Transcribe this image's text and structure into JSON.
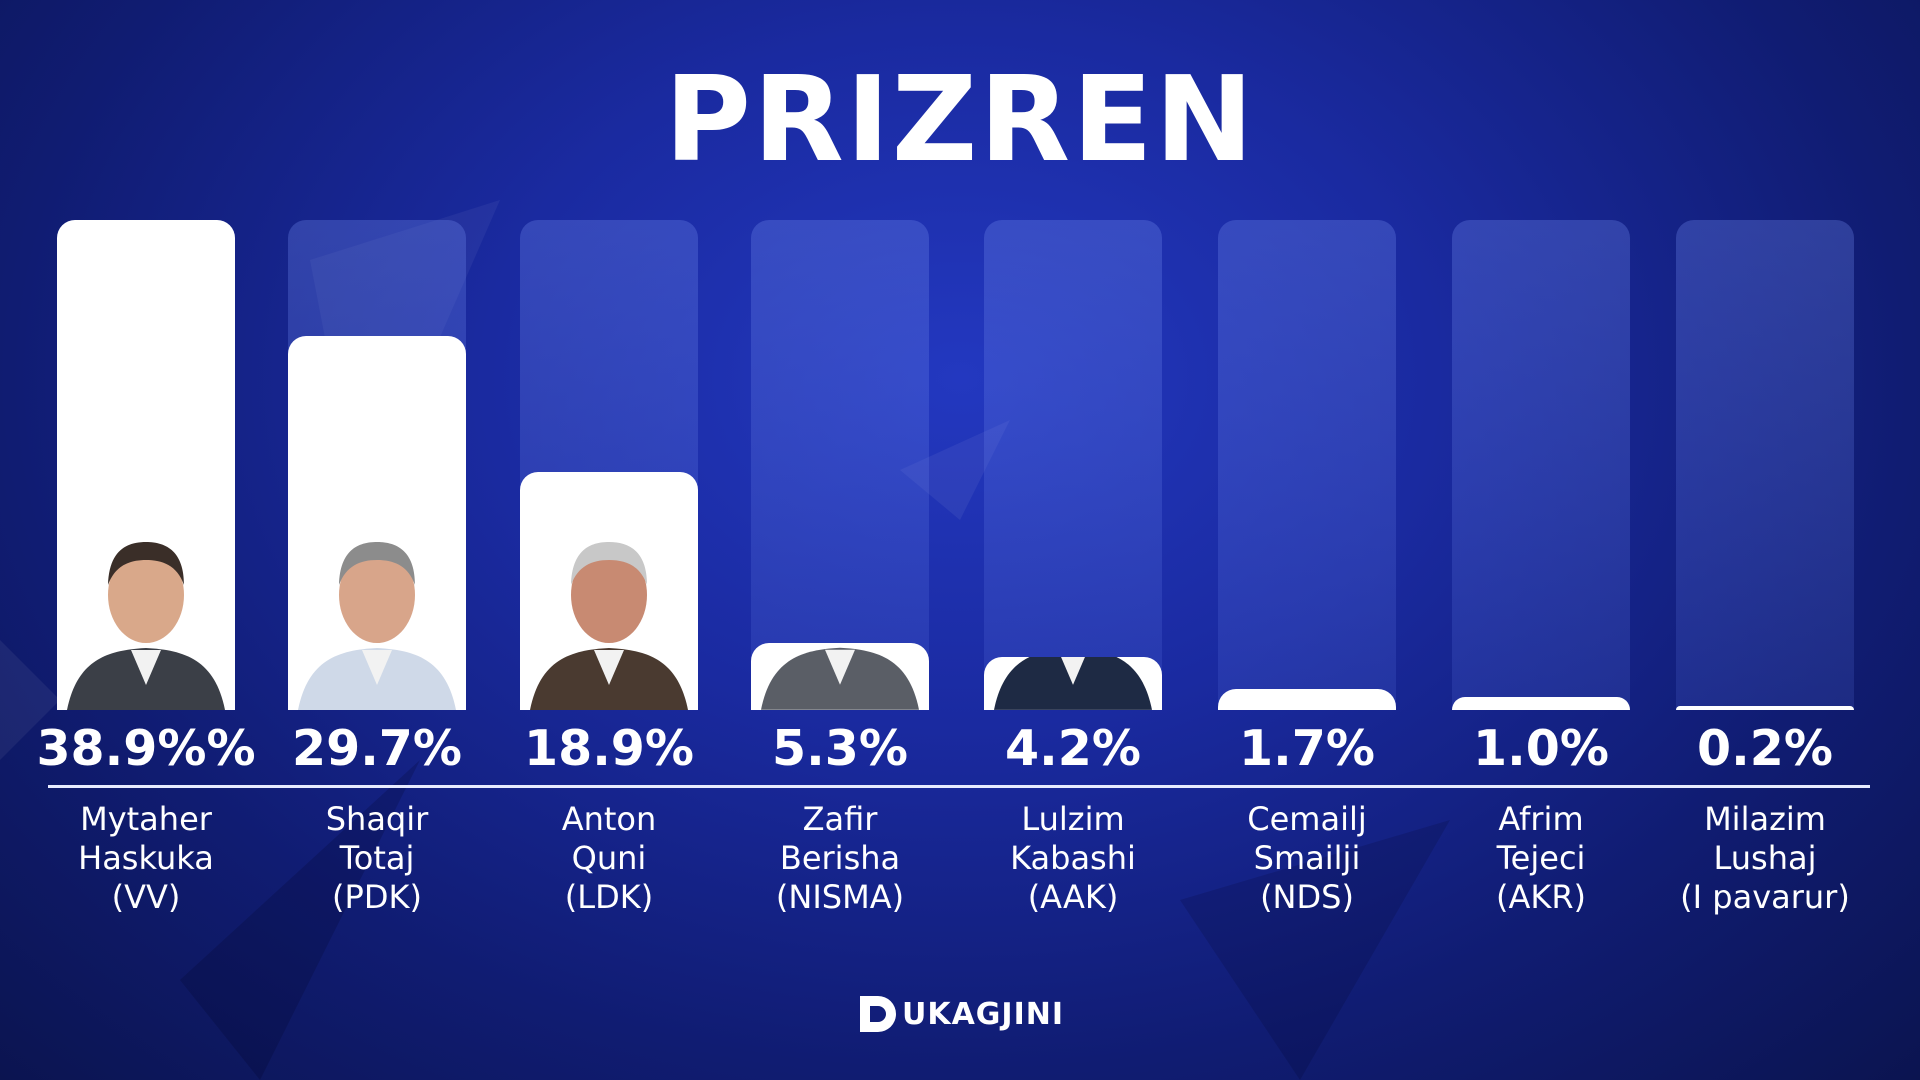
{
  "title": "PRIZREN",
  "logo_text": "UKAGJINI",
  "colors": {
    "bar_fill": "#ffffff",
    "track": "#5a73e1",
    "background": "#1a2aa0"
  },
  "chart_data": {
    "type": "bar",
    "title": "PRIZREN",
    "xlabel": "",
    "ylabel": "",
    "ylim": [
      0,
      38.9
    ],
    "grid": false,
    "categories": [
      "Mytaher Haskuka (VV)",
      "Shaqir Totaj (PDK)",
      "Anton Quni (LDK)",
      "Zafir Berisha (NISMA)",
      "Lulzim Kabashi (AAK)",
      "Cemailj Smailji (NDS)",
      "Afrim Tejeci (AKR)",
      "Milazim Lushaj (I pavarur)"
    ],
    "values": [
      38.9,
      29.7,
      18.9,
      5.3,
      4.2,
      1.7,
      1.0,
      0.2
    ],
    "value_labels": [
      "38.9%%",
      "29.7%",
      "18.9%",
      "5.3%",
      "4.2%",
      "1.7%",
      "1.0%",
      "0.2%"
    ]
  },
  "candidates": [
    {
      "first": "Mytaher",
      "last": "Haskuka",
      "party": "(VV)",
      "pct": "38.9%%",
      "value": 38.9,
      "suit": "#3b3f47",
      "skin": "#d9a88a",
      "hair": "#3a2e28"
    },
    {
      "first": "Shaqir",
      "last": "Totaj",
      "party": "(PDK)",
      "pct": "29.7%",
      "value": 29.7,
      "suit": "#cfd9e8",
      "skin": "#d8a58a",
      "hair": "#8c8c8c"
    },
    {
      "first": "Anton",
      "last": "Quni",
      "party": "(LDK)",
      "pct": "18.9%",
      "value": 18.9,
      "suit": "#4a3a30",
      "skin": "#c88a72",
      "hair": "#c8c8c8"
    },
    {
      "first": "Zafir",
      "last": "Berisha",
      "party": "(NISMA)",
      "pct": "5.3%",
      "value": 5.3,
      "suit": "#5a5e66",
      "skin": "#c9957a",
      "hair": "#3a3a3a"
    },
    {
      "first": "Lulzim",
      "last": "Kabashi",
      "party": "(AAK)",
      "pct": "4.2%",
      "value": 4.2,
      "suit": "#1e2a44",
      "skin": "#d4a084",
      "hair": "#2a2a2a"
    },
    {
      "first": "Cemailj",
      "last": "Smailji",
      "party": "(NDS)",
      "pct": "1.7%",
      "value": 1.7,
      "suit": "#1d1f26",
      "skin": "#d19c82",
      "hair": "#4a4a4a"
    },
    {
      "first": "Afrim",
      "last": "Tejeci",
      "party": "(AKR)",
      "pct": "1.0%",
      "value": 1.0,
      "suit": "#1c2540",
      "skin": "#c8957c",
      "hair": "#3a2e28"
    },
    {
      "first": "Milazim",
      "last": "Lushaj",
      "party": "(I pavarur)",
      "pct": "0.2%",
      "value": 0.2,
      "suit": "#2a2e38",
      "skin": "#d0a088",
      "hair": "#cfcfcf"
    }
  ]
}
